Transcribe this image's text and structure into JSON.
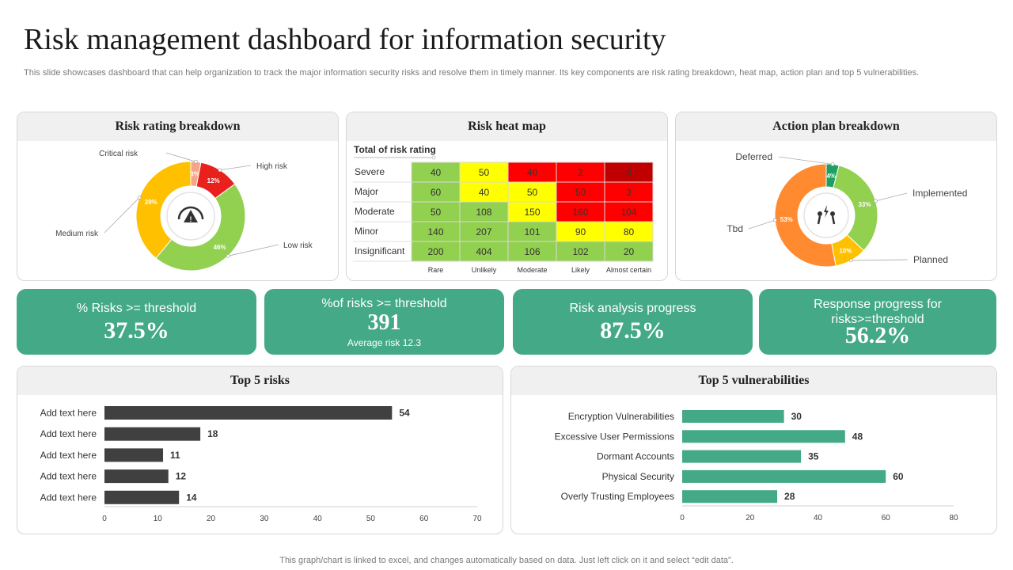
{
  "page": {
    "title": "Risk management dashboard for information security",
    "subtitle": "This slide showcases dashboard that can help organization to track the major information security risks and resolve them in timely manner. Its key components are risk rating breakdown, heat map, action plan and top 5 vulnerabilities.",
    "footer": "This graph/chart is linked to excel,  and changes automatically based on data. Just left click on it and select “edit data”."
  },
  "panels": {
    "risk_rating": "Risk rating breakdown",
    "heat_map": "Risk heat map",
    "action_plan": "Action plan breakdown",
    "top5_risks": "Top 5 risks",
    "top5_vuln": "Top 5 vulnerabilities"
  },
  "kpis": [
    {
      "label": "% Risks >= threshold",
      "value": "37.5%"
    },
    {
      "label": "%of risks >= threshold",
      "value": "391",
      "sub": "Average  risk 12.3"
    },
    {
      "label": "Risk analysis progress",
      "value": "87.5%"
    },
    {
      "label": "Response progress for risks>=threshold",
      "value": "56.2%"
    }
  ],
  "icons": {
    "risk_donut_center": "gauge-warning-icon",
    "action_donut_center": "people-lightning-icon"
  },
  "chart_data": [
    {
      "type": "pie",
      "title": "Risk rating breakdown",
      "labels": [
        "Critical risk",
        "High risk",
        "Low risk",
        "Medium risk"
      ],
      "values": [
        3,
        12,
        46,
        39
      ],
      "value_labels": [
        "3%",
        "12%",
        "46%",
        "39%"
      ],
      "colors": [
        "#f4a58a",
        "#e8211d",
        "#92d050",
        "#ffc000"
      ]
    },
    {
      "type": "heatmap",
      "title": "Total of risk rating",
      "rows": [
        "Severe",
        "Major",
        "Moderate",
        "Minor",
        "Insignificant"
      ],
      "columns": [
        "Rare",
        "Unlikely",
        "Moderate",
        "Likely",
        "Almost certain"
      ],
      "values": [
        [
          40,
          50,
          40,
          2,
          3
        ],
        [
          60,
          40,
          50,
          50,
          3
        ],
        [
          50,
          108,
          150,
          160,
          104
        ],
        [
          140,
          207,
          101,
          90,
          80
        ],
        [
          200,
          404,
          106,
          102,
          20
        ]
      ],
      "cell_colors": [
        [
          "#92d050",
          "#ffff00",
          "#ff0000",
          "#ff0000",
          "#c00000"
        ],
        [
          "#92d050",
          "#ffff00",
          "#ffff00",
          "#ff0000",
          "#ff0000"
        ],
        [
          "#92d050",
          "#92d050",
          "#ffff00",
          "#ff0000",
          "#ff0000"
        ],
        [
          "#92d050",
          "#92d050",
          "#92d050",
          "#ffff00",
          "#ffff00"
        ],
        [
          "#92d050",
          "#92d050",
          "#92d050",
          "#92d050",
          "#92d050"
        ]
      ]
    },
    {
      "type": "pie",
      "title": "Action plan breakdown",
      "labels": [
        "Deferred",
        "Implemented",
        "Planned",
        "Tbd"
      ],
      "values": [
        4,
        33,
        10,
        53
      ],
      "value_labels": [
        "4%",
        "33%",
        "10%",
        "53%"
      ],
      "colors": [
        "#1fa060",
        "#92d050",
        "#ffc000",
        "#ff8a30"
      ]
    },
    {
      "type": "bar",
      "orientation": "horizontal",
      "title": "Top 5 risks",
      "categories": [
        "Add text here",
        "Add text here",
        "Add text here",
        "Add text here",
        "Add text here"
      ],
      "values": [
        54,
        18,
        11,
        12,
        14
      ],
      "xlim": [
        0,
        70
      ],
      "xticks": [
        0,
        10,
        20,
        30,
        40,
        50,
        60,
        70
      ],
      "color": "#404040"
    },
    {
      "type": "bar",
      "orientation": "horizontal",
      "title": "Top 5 vulnerabilities",
      "categories": [
        "Encryption Vulnerabilities",
        "Excessive User Permissions",
        "Dormant Accounts",
        "Physical Security",
        "Overly Trusting Employees"
      ],
      "values": [
        30,
        48,
        35,
        60,
        28
      ],
      "xlim": [
        0,
        80
      ],
      "xticks": [
        0,
        20,
        40,
        60,
        80
      ],
      "color": "#43a986"
    }
  ]
}
